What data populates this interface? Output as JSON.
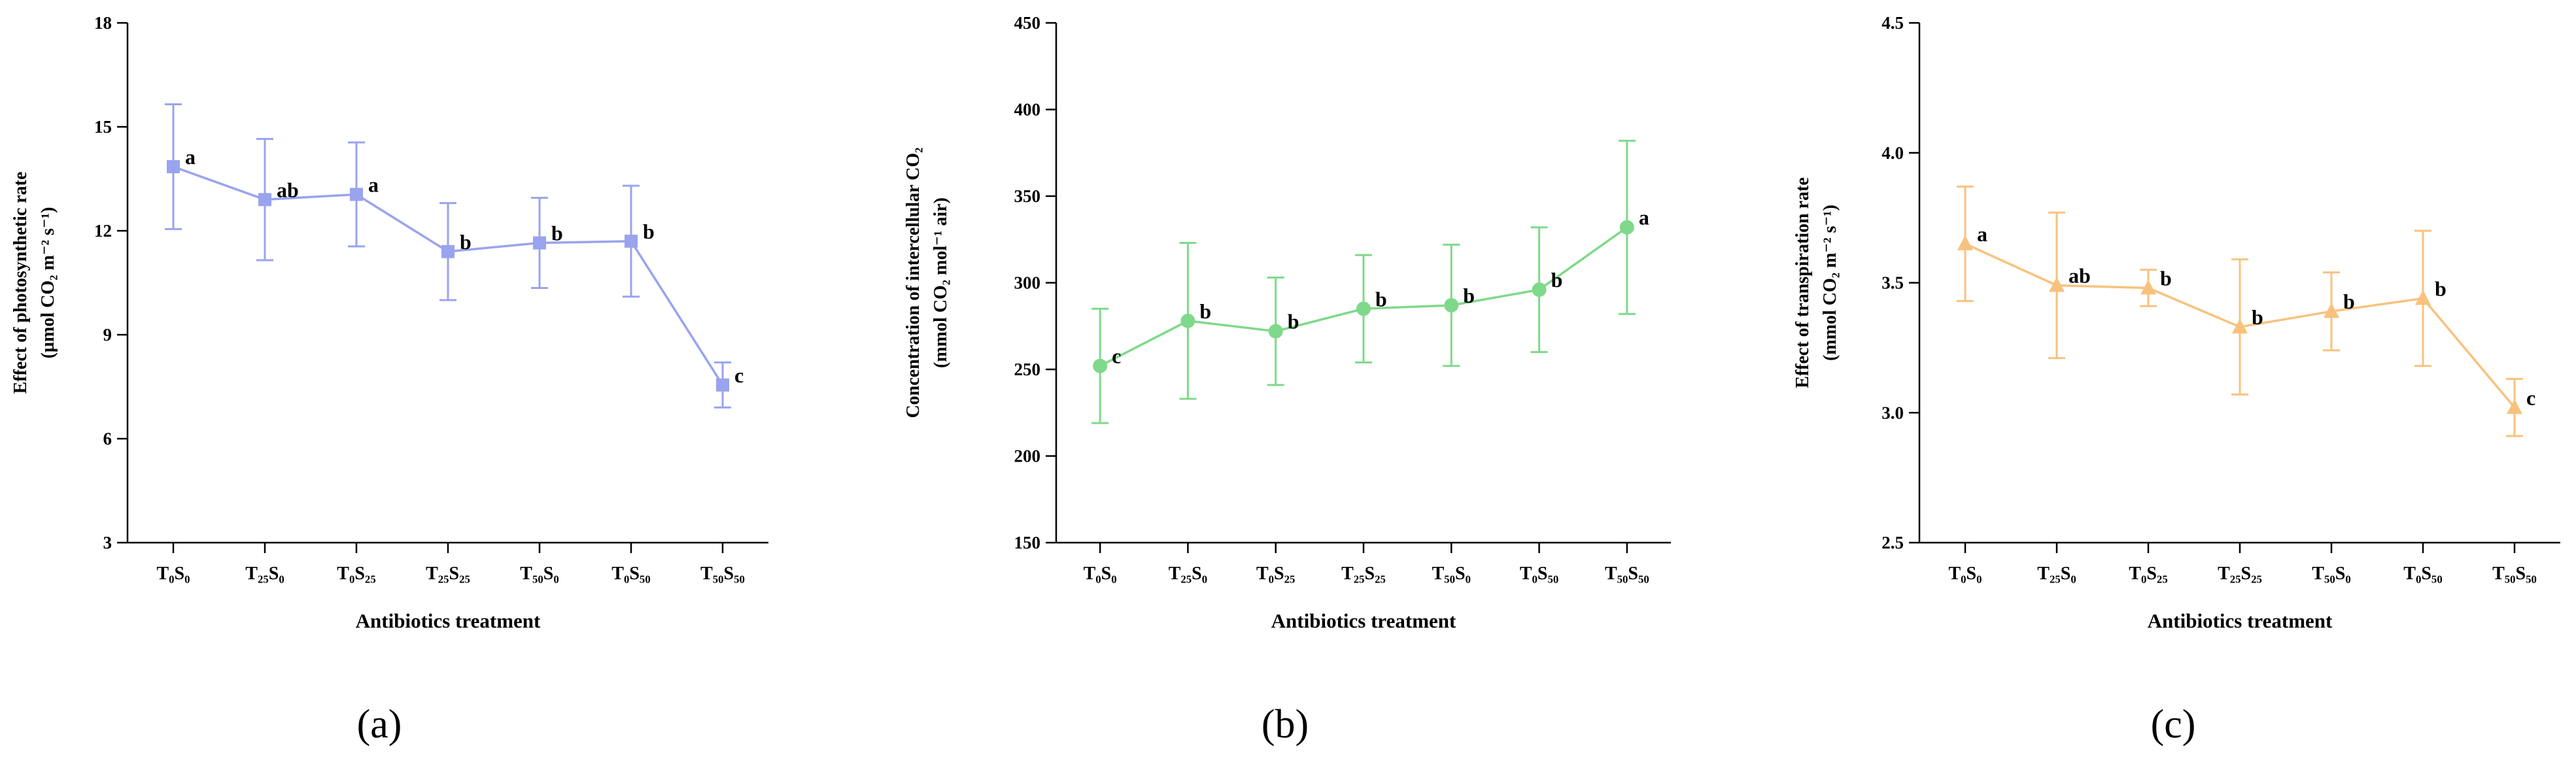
{
  "chart_data": [
    {
      "type": "line",
      "panel_label": "(a)",
      "color": "#9aa3ee",
      "marker": "square",
      "xlabel": "Antibiotics treatment",
      "ylabel_line1": "Effect of  photosynthetic rate",
      "ylabel_line2": "(µmol CO₂ m⁻² s⁻¹)",
      "ylim": [
        3,
        18
      ],
      "yticks": [
        "3",
        "6",
        "9",
        "12",
        "15",
        "18"
      ],
      "ytick_values": [
        3,
        6,
        9,
        12,
        15,
        18
      ],
      "categories": [
        "T₀S₀",
        "T₂₅S₀",
        "T₀S₂₅",
        "T₂₅S₂₅",
        "T₅₀S₀",
        "T₀S₅₀",
        "T₅₀S₅₀"
      ],
      "values": [
        13.85,
        12.9,
        13.05,
        11.4,
        11.65,
        11.7,
        7.55
      ],
      "errors": [
        1.8,
        1.75,
        1.5,
        1.4,
        1.3,
        1.6,
        0.65
      ],
      "letters": [
        "a",
        "ab",
        "a",
        "b",
        "b",
        "b",
        "c"
      ]
    },
    {
      "type": "line",
      "panel_label": "(b)",
      "color": "#7fd98a",
      "marker": "circle",
      "xlabel": "Antibiotics treatment",
      "ylabel_line1": "Concentration of intercellular CO₂",
      "ylabel_line2": "(mmol CO₂ mol⁻¹  air)",
      "ylim": [
        150,
        450
      ],
      "yticks": [
        "150",
        "200",
        "250",
        "300",
        "350",
        "400",
        "450"
      ],
      "ytick_values": [
        150,
        200,
        250,
        300,
        350,
        400,
        450
      ],
      "categories": [
        "T₀S₀",
        "T₂₅S₀",
        "T₀S₂₅",
        "T₂₅S₂₅",
        "T₅₀S₀",
        "T₀S₅₀",
        "T₅₀S₅₀"
      ],
      "values": [
        252,
        278,
        272,
        285,
        287,
        296,
        332
      ],
      "errors": [
        33,
        45,
        31,
        31,
        35,
        36,
        50
      ],
      "letters": [
        "c",
        "b",
        "b",
        "b",
        "b",
        "b",
        "a"
      ]
    },
    {
      "type": "line",
      "panel_label": "(c)",
      "color": "#f8c27e",
      "marker": "triangle",
      "xlabel": "Antibiotics treatment",
      "ylabel_line1": "Effect of transpiration rate",
      "ylabel_line2": "(mmol CO₂ m⁻² s⁻¹)",
      "ylim": [
        2.5,
        4.5
      ],
      "yticks": [
        "2.5",
        "3.0",
        "3.5",
        "4.0",
        "4.5"
      ],
      "ytick_values": [
        2.5,
        3.0,
        3.5,
        4.0,
        4.5
      ],
      "categories": [
        "T₀S₀",
        "T₂₅S₀",
        "T₀S₂₅",
        "T₂₅S₂₅",
        "T₅₀S₀",
        "T₀S₅₀",
        "T₅₀S₅₀"
      ],
      "values": [
        3.65,
        3.49,
        3.48,
        3.33,
        3.39,
        3.44,
        3.02
      ],
      "errors": [
        0.22,
        0.28,
        0.07,
        0.26,
        0.15,
        0.26,
        0.11
      ],
      "letters": [
        "a",
        "ab",
        "b",
        "b",
        "b",
        "b",
        "c"
      ]
    }
  ]
}
